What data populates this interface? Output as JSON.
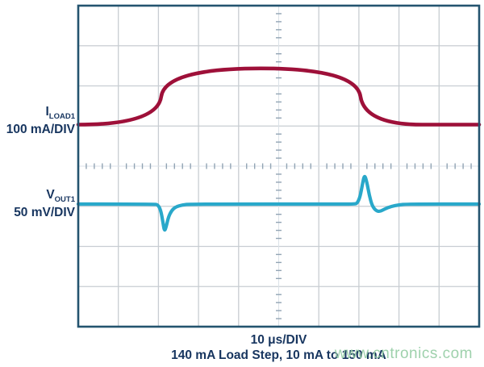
{
  "colors": {
    "ch1_trace": "#9e1039",
    "ch2_trace": "#29a8ca",
    "grid_line": "#c8cdd2",
    "center_line": "#dbe2e8",
    "tick_mark": "#92a4b4",
    "border": "#24546f",
    "label_text": "#17355f",
    "watermark_green": "#94ccA3"
  },
  "labels": {
    "ch1": {
      "letter": "I",
      "sub": "LOAD1",
      "scale": "100 mA/DIV"
    },
    "ch2": {
      "letter": "V",
      "sub": "OUT1",
      "scale": "50 mV/DIV"
    }
  },
  "caption": {
    "line1": "10 μs/DIV",
    "line2": "140 mA Load Step, 10 mA to 150 mA"
  },
  "watermark": {
    "text": "www.cntronics.com"
  },
  "chart_data": {
    "type": "line",
    "title": "",
    "xlabel": "10 μs/DIV",
    "x_axis": {
      "us_per_div": 10,
      "divisions": 10,
      "total_us": 100
    },
    "y_axis": {
      "divisions": 8,
      "grid": "oscilloscope",
      "center_ticks_per_div": 5
    },
    "series": [
      {
        "name": "ILOAD1",
        "scale_label": "100 mA/DIV",
        "units_per_div": 100,
        "unit": "mA",
        "baseline_value": 10,
        "points": [
          [
            0,
            10
          ],
          [
            19.7,
            10
          ],
          [
            21.7,
            150
          ],
          [
            69.3,
            150
          ],
          [
            71.5,
            10
          ],
          [
            100,
            10
          ]
        ]
      },
      {
        "name": "VOUT1",
        "scale_label": "50 mV/DIV",
        "units_per_div": 50,
        "unit": "mV",
        "baseline_value": 0,
        "points": [
          [
            0,
            0
          ],
          [
            19.0,
            0
          ],
          [
            19.9,
            -1
          ],
          [
            20.6,
            -8
          ],
          [
            21.1,
            -22
          ],
          [
            21.5,
            -34
          ],
          [
            21.9,
            -29
          ],
          [
            22.5,
            -16
          ],
          [
            23.3,
            -8
          ],
          [
            24.3,
            -3.5
          ],
          [
            26,
            -1
          ],
          [
            28,
            0
          ],
          [
            66,
            0
          ],
          [
            68.9,
            0
          ],
          [
            69.6,
            1
          ],
          [
            70.3,
            9
          ],
          [
            70.9,
            25
          ],
          [
            71.4,
            37
          ],
          [
            72.0,
            27
          ],
          [
            72.6,
            11
          ],
          [
            73.3,
            -2
          ],
          [
            74.2,
            -8
          ],
          [
            75.2,
            -9.5
          ],
          [
            76.5,
            -6
          ],
          [
            78,
            -3
          ],
          [
            80,
            -1
          ],
          [
            82,
            0
          ],
          [
            100,
            0
          ]
        ]
      }
    ],
    "annotations": [
      "Load current steps from 10 mA to 150 mA (140 mA step) at t = 20 us, returns at t = 70 us",
      "VOUT1 undershoot approx -34 mV on load rise, overshoot approx +37 mV on load release"
    ]
  }
}
